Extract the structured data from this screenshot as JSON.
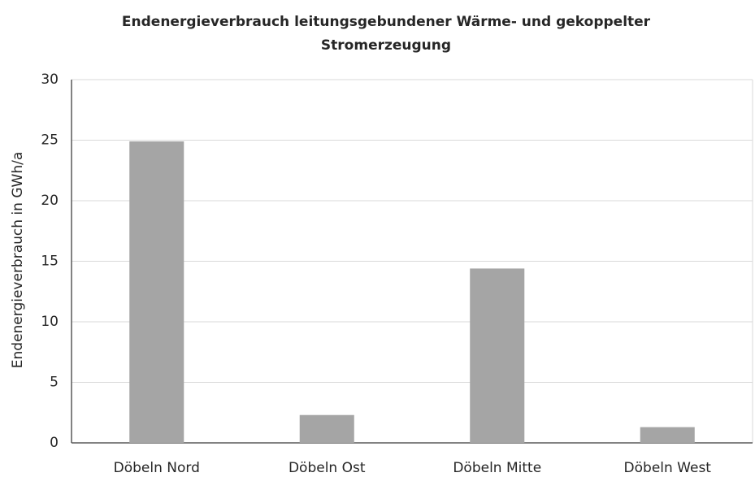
{
  "chart_data": {
    "type": "bar",
    "title": [
      "Endenergieverbrauch leitungsgebundener Wärme- und gekoppelter",
      "Stromerzeugung"
    ],
    "y_axis_label": "Endenergieverbrauch in GWh/a",
    "categories": [
      "Döbeln Nord",
      "Döbeln Ost",
      "Döbeln Mitte",
      "Döbeln West"
    ],
    "values": [
      24.9,
      2.3,
      14.4,
      1.3
    ],
    "color": "#a5a5a5",
    "ylim": [
      0,
      30
    ],
    "yticks": [
      0,
      5,
      10,
      15,
      20,
      25,
      30
    ],
    "grid": true
  }
}
